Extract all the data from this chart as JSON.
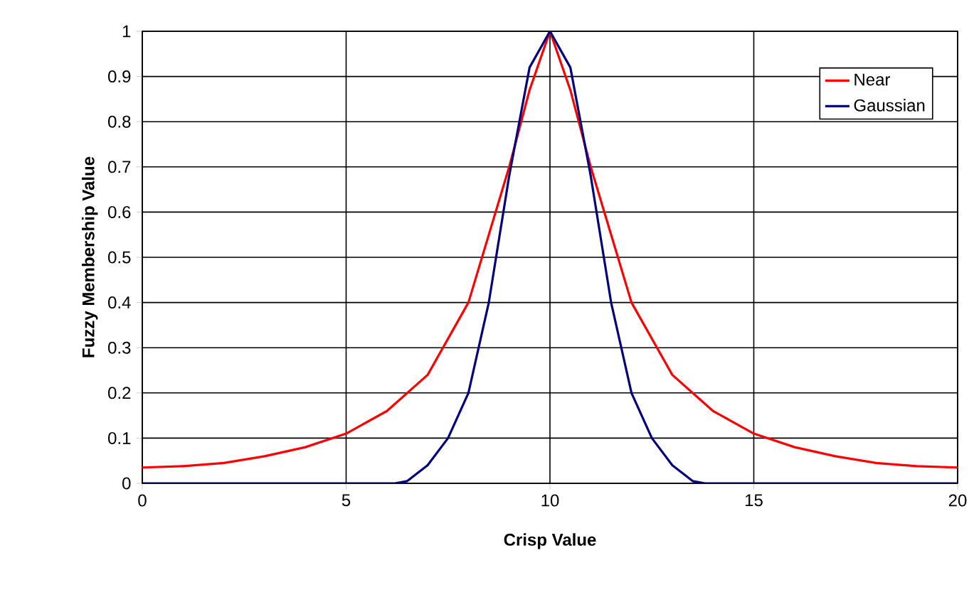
{
  "chart_data": {
    "type": "line",
    "xlabel": "Crisp Value",
    "ylabel": "Fuzzy Membership Value",
    "xlim": [
      0,
      20
    ],
    "ylim": [
      0,
      1
    ],
    "xticks": [
      0,
      5,
      10,
      15,
      20
    ],
    "yticks": [
      0,
      0.1,
      0.2,
      0.3,
      0.4,
      0.5,
      0.6,
      0.7,
      0.8,
      0.9,
      1
    ],
    "grid": true,
    "legend": "top right",
    "marker": "none",
    "line_style": "solid",
    "series": [
      {
        "name": "Near",
        "color": "#ff0000",
        "x": [
          0,
          1,
          2,
          3,
          4,
          5,
          6,
          7,
          8,
          8.5,
          9,
          9.5,
          10,
          10.5,
          11,
          11.5,
          12,
          13,
          14,
          15,
          16,
          17,
          18,
          19,
          20
        ],
        "values": [
          0.035,
          0.038,
          0.045,
          0.06,
          0.08,
          0.11,
          0.16,
          0.24,
          0.4,
          0.55,
          0.7,
          0.87,
          1,
          0.87,
          0.7,
          0.55,
          0.4,
          0.24,
          0.16,
          0.11,
          0.08,
          0.06,
          0.045,
          0.038,
          0.035
        ]
      },
      {
        "name": "Gaussian",
        "color": "#000080",
        "x": [
          0,
          6.2,
          6.5,
          7,
          7.5,
          8,
          8.5,
          9,
          9.5,
          10,
          10.5,
          11,
          11.5,
          12,
          12.5,
          13,
          13.5,
          13.8,
          20
        ],
        "values": [
          0,
          0,
          0.005,
          0.04,
          0.1,
          0.2,
          0.4,
          0.68,
          0.92,
          1,
          0.92,
          0.68,
          0.4,
          0.2,
          0.1,
          0.04,
          0.005,
          0,
          0
        ]
      }
    ]
  }
}
